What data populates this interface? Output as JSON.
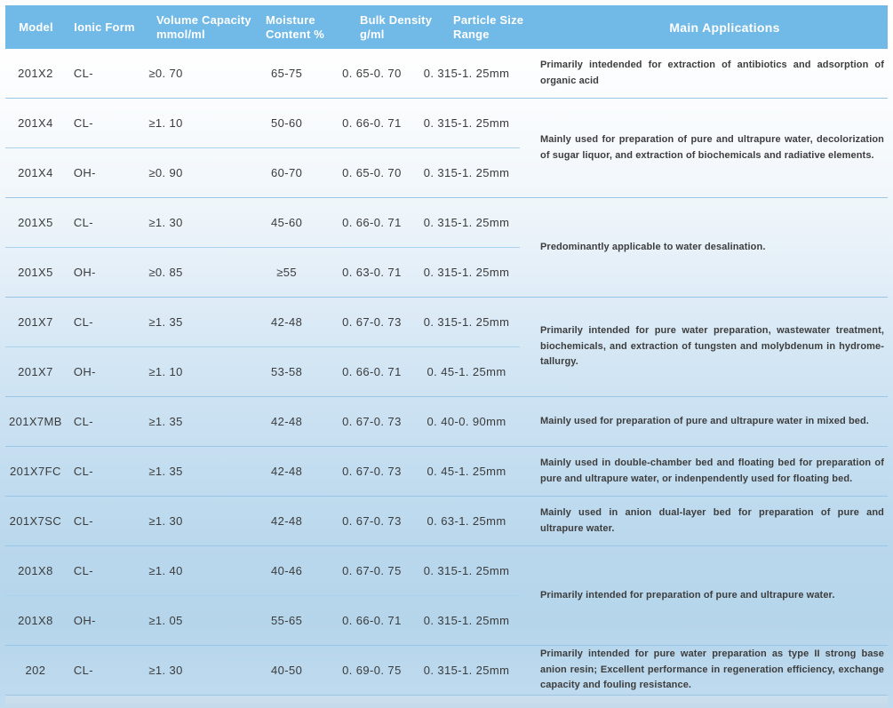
{
  "colors": {
    "header_bg": "#71b9e6",
    "divider": "#97c6e8",
    "divider_inner": "#a9d2ec",
    "header_text": "#ffffff",
    "body_text": "#3b3b3b"
  },
  "table": {
    "header": {
      "columns": [
        {
          "id": "model",
          "label": "Model"
        },
        {
          "id": "ionic_form",
          "label": "Ionic Form"
        },
        {
          "id": "volume_capacity",
          "label": "Volume Capacity",
          "sublabel": "mmol/ml"
        },
        {
          "id": "moisture_content",
          "label": "Moisture",
          "sublabel": "Content %"
        },
        {
          "id": "bulk_density",
          "label": "Bulk Density",
          "sublabel": "g/ml"
        },
        {
          "id": "particle_size",
          "label": "Particle Size",
          "sublabel": "Range"
        },
        {
          "id": "main_applications",
          "label": "Main Applications"
        }
      ]
    },
    "groups": [
      {
        "rows": [
          {
            "model": "201X2",
            "ionic_form": "CL-",
            "volume_capacity": "≥0. 70",
            "moisture": "65-75",
            "bulk_density": "0. 65-0. 70",
            "particle_size": "0. 315-1. 25mm"
          }
        ],
        "application": "Primarily intedended for extraction of antibiotics and adsorption of organic acid"
      },
      {
        "rows": [
          {
            "model": "201X4",
            "ionic_form": "CL-",
            "volume_capacity": "≥1. 10",
            "moisture": "50-60",
            "bulk_density": "0. 66-0. 71",
            "particle_size": "0. 315-1. 25mm"
          },
          {
            "model": "201X4",
            "ionic_form": "OH-",
            "volume_capacity": "≥0. 90",
            "moisture": "60-70",
            "bulk_density": "0. 65-0. 70",
            "particle_size": "0. 315-1. 25mm"
          }
        ],
        "application": "Mainly used for preparation of pure and ultrapure water, decolorization of sugar liquor, and extraction of biochemicals and radiative elements."
      },
      {
        "rows": [
          {
            "model": "201X5",
            "ionic_form": "CL-",
            "volume_capacity": "≥1. 30",
            "moisture": "45-60",
            "bulk_density": "0. 66-0. 71",
            "particle_size": "0. 315-1. 25mm"
          },
          {
            "model": "201X5",
            "ionic_form": "OH-",
            "volume_capacity": "≥0. 85",
            "moisture": "≥55",
            "bulk_density": "0. 63-0. 71",
            "particle_size": "0. 315-1. 25mm"
          }
        ],
        "application": "Predominantly applicable to water desalination."
      },
      {
        "rows": [
          {
            "model": "201X7",
            "ionic_form": "CL-",
            "volume_capacity": "≥1. 35",
            "moisture": "42-48",
            "bulk_density": "0. 67-0. 73",
            "particle_size": "0. 315-1. 25mm"
          },
          {
            "model": "201X7",
            "ionic_form": "OH-",
            "volume_capacity": "≥1. 10",
            "moisture": "53-58",
            "bulk_density": "0. 66-0. 71",
            "particle_size": "0. 45-1. 25mm"
          }
        ],
        "application": "Primarily intended for pure water preparation, wastewater treatment, biochemicals, and extraction of tungsten and molybdenum in hydrome-tallurgy."
      },
      {
        "rows": [
          {
            "model": "201X7MB",
            "ionic_form": "CL-",
            "volume_capacity": "≥1. 35",
            "moisture": "42-48",
            "bulk_density": "0. 67-0. 73",
            "particle_size": "0. 40-0. 90mm"
          }
        ],
        "application": "Mainly used for preparation of pure and ultrapure water in mixed bed."
      },
      {
        "rows": [
          {
            "model": "201X7FC",
            "ionic_form": "CL-",
            "volume_capacity": "≥1. 35",
            "moisture": "42-48",
            "bulk_density": "0. 67-0. 73",
            "particle_size": "0. 45-1. 25mm"
          }
        ],
        "application": "Mainly used in double-chamber bed and floating bed for preparation of pure and ultrapure water, or indenpendently used for floating bed."
      },
      {
        "rows": [
          {
            "model": "201X7SC",
            "ionic_form": "CL-",
            "volume_capacity": "≥1. 30",
            "moisture": "42-48",
            "bulk_density": "0. 67-0. 73",
            "particle_size": "0. 63-1. 25mm"
          }
        ],
        "application": "Mainly used in anion dual-layer bed for preparation of pure and ultrapure water."
      },
      {
        "rows": [
          {
            "model": "201X8",
            "ionic_form": "CL-",
            "volume_capacity": "≥1. 40",
            "moisture": "40-46",
            "bulk_density": "0. 67-0. 75",
            "particle_size": "0. 315-1. 25mm"
          },
          {
            "model": "201X8",
            "ionic_form": "OH-",
            "volume_capacity": "≥1. 05",
            "moisture": "55-65",
            "bulk_density": "0. 66-0. 71",
            "particle_size": "0. 315-1. 25mm"
          }
        ],
        "application": "Primarily intended for preparation of pure and ultrapure water."
      },
      {
        "rows": [
          {
            "model": "202",
            "ionic_form": "CL-",
            "volume_capacity": "≥1. 30",
            "moisture": "40-50",
            "bulk_density": "0. 69-0. 75",
            "particle_size": "0. 315-1. 25mm"
          }
        ],
        "application": "Primarily intended for pure water preparation as type II strong base anion resin; Excellent performance in regeneration efficiency, exchange capacity and fouling resistance."
      }
    ]
  }
}
